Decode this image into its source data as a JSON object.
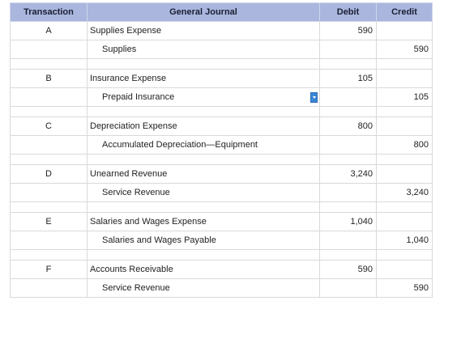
{
  "headers": {
    "transaction": "Transaction",
    "journal": "General Journal",
    "debit": "Debit",
    "credit": "Credit"
  },
  "entries": [
    {
      "id": "A",
      "debit_account": "Supplies Expense",
      "credit_account": "Supplies",
      "amount": "590"
    },
    {
      "id": "B",
      "debit_account": "Insurance Expense",
      "credit_account": "Prepaid Insurance",
      "amount": "105"
    },
    {
      "id": "C",
      "debit_account": "Depreciation Expense",
      "credit_account": "Accumulated Depreciation—Equipment",
      "amount": "800"
    },
    {
      "id": "D",
      "debit_account": "Unearned Revenue",
      "credit_account": "Service Revenue",
      "amount": "3,240"
    },
    {
      "id": "E",
      "debit_account": "Salaries and Wages Expense",
      "credit_account": "Salaries and Wages Payable",
      "amount": "1,040"
    },
    {
      "id": "F",
      "debit_account": "Accounts Receivable",
      "credit_account": "Service Revenue",
      "amount": "590"
    }
  ],
  "icons": {
    "dropdown": "chevron-down-icon"
  },
  "colors": {
    "header_bg": "#aab6dd",
    "dropdown": "#3a86d6"
  }
}
